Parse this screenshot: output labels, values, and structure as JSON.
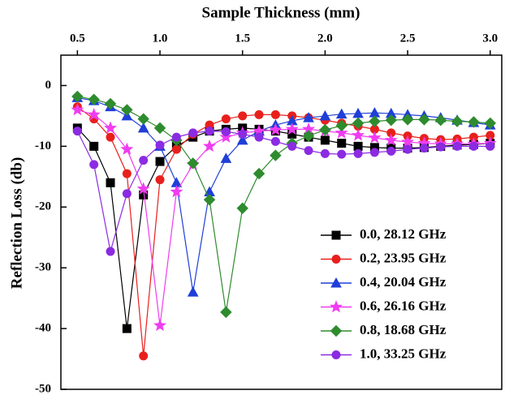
{
  "chart_data": {
    "type": "line",
    "xlabel": "Sample Thickness (mm)",
    "ylabel": "Reflection Loss (db)",
    "x": [
      0.5,
      0.6,
      0.7,
      0.8,
      0.9,
      1.0,
      1.1,
      1.2,
      1.3,
      1.4,
      1.5,
      1.6,
      1.7,
      1.8,
      1.9,
      2.0,
      2.1,
      2.2,
      2.3,
      2.4,
      2.5,
      2.6,
      2.7,
      2.8,
      2.9,
      3.0
    ],
    "xlim": [
      0.4,
      3.07
    ],
    "xticks": [
      0.5,
      {
        "value": 1.0,
        "label": "1.0"
      },
      1.5,
      {
        "value": 2.0,
        "label": "2.0"
      },
      2.5,
      {
        "value": 3.0,
        "label": "3.0"
      }
    ],
    "ylim": [
      -50,
      5
    ],
    "yticks": [
      0,
      -10,
      -20,
      -30,
      -40,
      -50
    ],
    "x_axis_position": "top",
    "legend_position": "lower right",
    "series": [
      {
        "name": "0.0, 28.12 GHz",
        "color": "#000000",
        "marker": "square",
        "values": [
          -7,
          -10,
          -16,
          -40,
          -18,
          -12.5,
          -10,
          -8.5,
          -7.5,
          -7.2,
          -7,
          -7.2,
          -7.5,
          -8,
          -8.5,
          -9,
          -9.5,
          -10,
          -10.2,
          -10.3,
          -10.3,
          -10.2,
          -10,
          -9.8,
          -9.7,
          -9.5
        ]
      },
      {
        "name": "0.2, 23.95 GHz",
        "color": "#e8201c",
        "marker": "circle",
        "values": [
          -3.5,
          -5.5,
          -8.5,
          -14.5,
          -44.5,
          -15.5,
          -10.5,
          -8,
          -6.5,
          -5.5,
          -5,
          -4.8,
          -4.8,
          -5,
          -5.3,
          -5.7,
          -6.2,
          -6.7,
          -7.2,
          -7.8,
          -8.3,
          -8.7,
          -8.9,
          -8.8,
          -8.5,
          -8.2
        ]
      },
      {
        "name": "0.4, 20.04 GHz",
        "color": "#1f3fd8",
        "marker": "triangle",
        "values": [
          -2,
          -2.5,
          -3.5,
          -5,
          -7,
          -10,
          -16,
          -34,
          -17.5,
          -12,
          -9,
          -7.5,
          -6.5,
          -5.8,
          -5.3,
          -5,
          -4.7,
          -4.6,
          -4.5,
          -4.6,
          -4.8,
          -5,
          -5.3,
          -5.7,
          -6.1,
          -6.5
        ]
      },
      {
        "name": "0.6, 26.16 GHz",
        "color": "#f03cf0",
        "marker": "star",
        "values": [
          -4,
          -4.8,
          -7,
          -10.5,
          -17,
          -39.5,
          -17.5,
          -13,
          -10,
          -8.5,
          -7.8,
          -7.5,
          -7.3,
          -7.2,
          -7.2,
          -7.5,
          -7.8,
          -8.2,
          -8.6,
          -9,
          -9.3,
          -9.5,
          -9.6,
          -9.6,
          -9.6,
          -9.5
        ]
      },
      {
        "name": "0.8, 18.68 GHz",
        "color": "#2e8b2e",
        "marker": "diamond",
        "values": [
          -1.8,
          -2.3,
          -3,
          -4,
          -5.5,
          -7,
          -9,
          -12.8,
          -18.8,
          -37.3,
          -20.2,
          -14.5,
          -11.5,
          -9.5,
          -8.3,
          -7.3,
          -6.6,
          -6.2,
          -5.9,
          -5.7,
          -5.6,
          -5.6,
          -5.7,
          -5.9,
          -6,
          -6.2
        ]
      },
      {
        "name": "1.0, 33.25 GHz",
        "color": "#8b2be2",
        "marker": "circle",
        "values": [
          -7.5,
          -13,
          -27.3,
          -17.8,
          -12.3,
          -9.8,
          -8.5,
          -7.8,
          -7.5,
          -7.6,
          -8,
          -8.5,
          -9.2,
          -10,
          -10.7,
          -11.2,
          -11.3,
          -11.2,
          -11,
          -10.8,
          -10.5,
          -10.3,
          -10.1,
          -10,
          -10,
          -10
        ]
      }
    ]
  }
}
